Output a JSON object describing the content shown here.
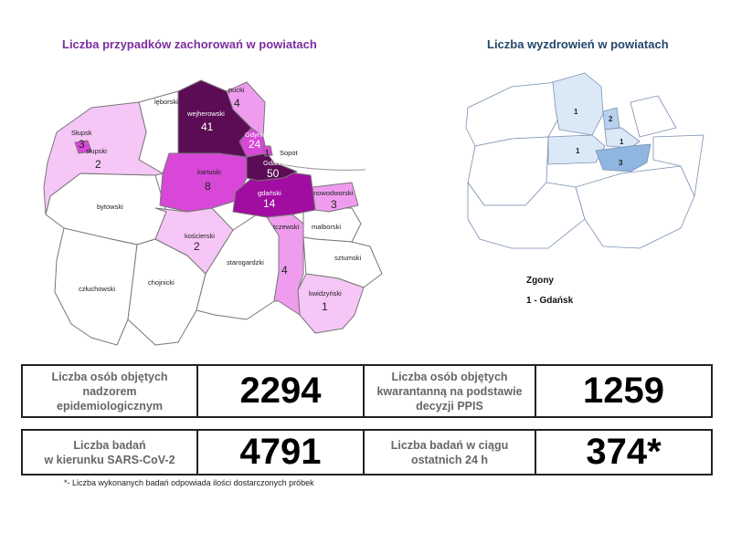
{
  "map_cases": {
    "title": "Liczba przypadków zachorowań w powiatach",
    "districts": [
      {
        "name": "lęborski",
        "value": ""
      },
      {
        "name": "wejherowski",
        "value": "41"
      },
      {
        "name": "pucki",
        "value": "4"
      },
      {
        "name": "Gdynia",
        "value": "24"
      },
      {
        "name": "Sopot",
        "value": "1"
      },
      {
        "name": "Gdańsk",
        "value": "50"
      },
      {
        "name": "Słupsk",
        "value": "3"
      },
      {
        "name": "słupski",
        "value": "2"
      },
      {
        "name": "bytowski",
        "value": ""
      },
      {
        "name": "kartuski",
        "value": "8"
      },
      {
        "name": "gdański",
        "value": "14"
      },
      {
        "name": "nowodworski",
        "value": "3"
      },
      {
        "name": "kościerski",
        "value": "2"
      },
      {
        "name": "malborski",
        "value": ""
      },
      {
        "name": "tczewski",
        "value": "4"
      },
      {
        "name": "sztumski",
        "value": ""
      },
      {
        "name": "starogardzki",
        "value": ""
      },
      {
        "name": "chojnicki",
        "value": ""
      },
      {
        "name": "człuchowski",
        "value": ""
      },
      {
        "name": "kwidzyński",
        "value": "1"
      }
    ],
    "colors": {
      "dark": "#5b0c54",
      "strong": "#a10da0",
      "medium": "#d847d8",
      "light": "#ef9cef",
      "pale": "#f6c6f6",
      "none": "#ffffff"
    }
  },
  "map_recoveries": {
    "title": "Liczba wyzdrowień w powiatach",
    "values": [
      "1",
      "2",
      "1",
      "1",
      "3"
    ],
    "colors": {
      "pale": "#dbe9f7",
      "light": "#b6d1ee",
      "medium": "#8fb6e0"
    }
  },
  "deaths": {
    "title": "Zgony",
    "entry": "1 - Gdańsk"
  },
  "stats": {
    "supervision_label_1": "Liczba osób objętych",
    "supervision_label_2": "nadzorem",
    "supervision_label_3": "epidemiologicznym",
    "supervision_value": "2294",
    "quarantine_label_1": "Liczba osób objętych",
    "quarantine_label_2": "kwarantanną na podstawie",
    "quarantine_label_3": "decyzji PPIS",
    "quarantine_value": "1259",
    "tests_label_1": "Liczba badań",
    "tests_label_2": "w kierunku SARS-CoV-2",
    "tests_value": "4791",
    "tests24_label_1": "Liczba badań w ciągu",
    "tests24_label_2": "ostatnich 24 h",
    "tests24_value": "374*"
  },
  "footnote": "*- Liczba wykonanych badań odpowiada ilości dostarczonych próbek"
}
